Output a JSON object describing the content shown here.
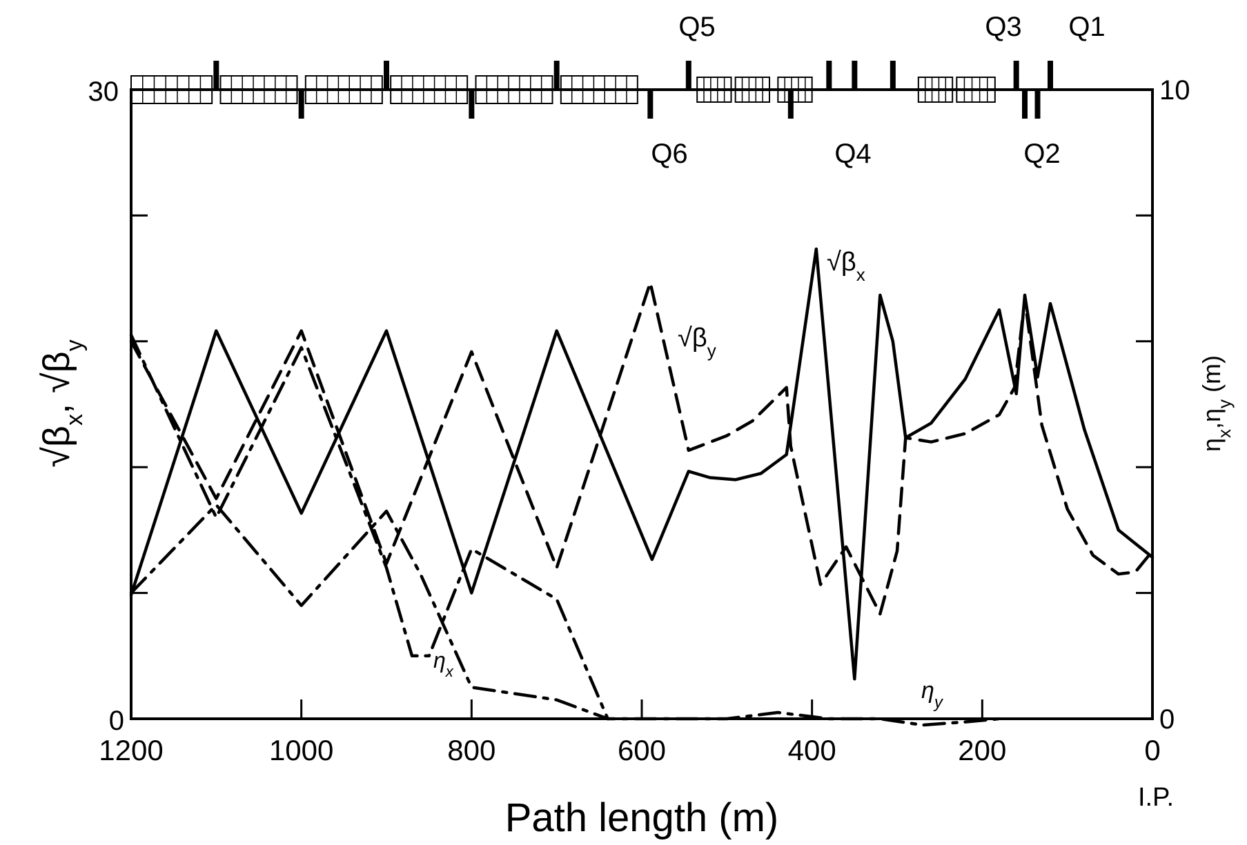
{
  "chart_data": {
    "type": "line",
    "xlabel": "Path length (m)",
    "x_reversed": true,
    "xlim": [
      1200,
      0
    ],
    "xticks": [
      1200,
      1000,
      800,
      600,
      400,
      200,
      0
    ],
    "ip_label": "I.P.",
    "left_axis": {
      "label_parts": [
        "√β",
        "x",
        ", √β",
        "y"
      ],
      "ylim": [
        0,
        30
      ],
      "tick_labels": [
        "0",
        "30"
      ],
      "minor_ticks": [
        6,
        12,
        18,
        24
      ]
    },
    "right_axis": {
      "label_parts": [
        "η",
        "x",
        ",η",
        "y",
        " (m)"
      ],
      "ylim": [
        0,
        10
      ],
      "tick_labels": [
        "0",
        "10"
      ]
    },
    "grid": false,
    "legend": "none (inline curve labels)",
    "lattice_labels": {
      "top": [
        "Q5",
        "Q3",
        "Q1"
      ],
      "bottom": [
        "Q6",
        "Q4",
        "Q2"
      ]
    },
    "series": [
      {
        "name": "√βx",
        "label_parts": [
          "√β",
          "x"
        ],
        "axis": "left",
        "style": "solid",
        "x": [
          1200,
          1100,
          1000,
          900,
          800,
          700,
          588,
          545,
          520,
          490,
          460,
          430,
          395,
          350,
          320,
          305,
          290,
          260,
          220,
          180,
          160,
          150,
          135,
          120,
          80,
          40,
          0
        ],
        "y": [
          5.9,
          18.5,
          9.8,
          18.5,
          6.0,
          18.5,
          7.6,
          11.8,
          11.5,
          11.4,
          11.7,
          12.6,
          22.4,
          1.9,
          20.2,
          18.0,
          13.4,
          14.1,
          16.2,
          19.5,
          15.5,
          20.2,
          16.3,
          19.8,
          13.8,
          9.0,
          7.7
        ]
      },
      {
        "name": "√βy",
        "label_parts": [
          "√β",
          "y"
        ],
        "axis": "left",
        "style": "dashed",
        "x": [
          1200,
          1100,
          1000,
          900,
          800,
          700,
          590,
          545,
          500,
          470,
          430,
          425,
          390,
          360,
          320,
          300,
          290,
          260,
          220,
          180,
          162,
          150,
          140,
          130,
          100,
          70,
          40,
          20,
          0
        ],
        "y": [
          18.0,
          10.5,
          18.5,
          7.4,
          17.5,
          7.2,
          20.8,
          12.8,
          13.5,
          14.2,
          15.8,
          13.0,
          6.4,
          8.2,
          5.0,
          8.0,
          13.4,
          13.2,
          13.6,
          14.5,
          15.8,
          20.0,
          17.0,
          14.0,
          10.0,
          7.8,
          6.9,
          7.0,
          8.0
        ]
      },
      {
        "name": "ηx",
        "label_parts": [
          "η",
          "x"
        ],
        "axis": "right",
        "style": "dashdot",
        "x": [
          1200,
          1100,
          1000,
          900,
          870,
          850,
          800,
          700,
          640
        ],
        "y": [
          6.1,
          3.2,
          5.9,
          2.4,
          1.0,
          1.0,
          2.7,
          1.9,
          0.0
        ]
      },
      {
        "name": "ηy",
        "label_parts": [
          "η",
          "y"
        ],
        "axis": "right",
        "style": "dashdot",
        "x": [
          1200,
          1100,
          1000,
          900,
          860,
          800,
          700,
          640,
          500,
          440,
          380,
          320,
          270,
          220,
          180
        ],
        "y": [
          2.0,
          3.4,
          1.8,
          3.3,
          2.3,
          0.5,
          0.3,
          0.0,
          0.0,
          0.1,
          0.0,
          0.0,
          -0.1,
          -0.05,
          0.0
        ]
      }
    ]
  }
}
